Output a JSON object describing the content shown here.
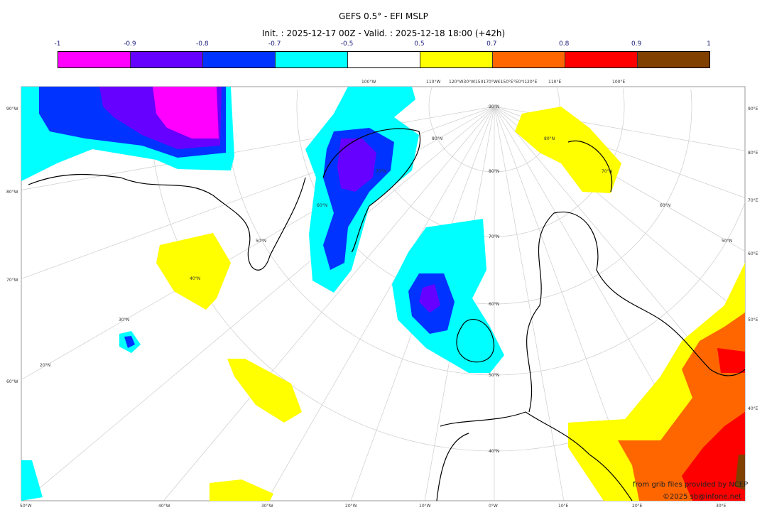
{
  "header": {
    "title": "GEFS 0.5° - EFI MSLP",
    "subtitle": "Init. : 2025-12-17 00Z - Valid. : 2025-12-18 18:00 (+42h)"
  },
  "colorbar": {
    "ticks": [
      "-1",
      "-0.9",
      "-0.8",
      "-0.7",
      "-0.5",
      "0.5",
      "0.7",
      "0.8",
      "0.9",
      "1"
    ],
    "colors": [
      "#ff00ff",
      "#6600ff",
      "#0033ff",
      "#00ffff",
      "#ffffff",
      "#ffff00",
      "#ff6600",
      "#ff0000",
      "#804000"
    ]
  },
  "map": {
    "top_labels": [
      "100°W",
      "110°W",
      "120°W30°W150170°W€150°E°E0°I120°E",
      "110°E",
      "100°E"
    ],
    "left_labels": [
      "90°W",
      "80°W",
      "70°W",
      "60°W"
    ],
    "right_labels": [
      "90°E",
      "80°E",
      "70°E",
      "60°E",
      "50°E",
      "40°E"
    ],
    "bottom_labels": [
      "50°W",
      "40°W",
      "30°W",
      "20°W",
      "10°W",
      "0°W",
      "10°E",
      "20°E",
      "30°E"
    ],
    "lat_labels": [
      "90°N",
      "80°N",
      "80°N",
      "80°N",
      "70°N",
      "70°N",
      "70°N",
      "60°N",
      "60°N",
      "60°N",
      "50°N",
      "50°N",
      "50°N",
      "40°N",
      "40°N",
      "30°N",
      "20°N"
    ]
  },
  "credits": {
    "source": "from grib files provided by NCEP",
    "copyright": "©2025 sb@infone.net"
  }
}
